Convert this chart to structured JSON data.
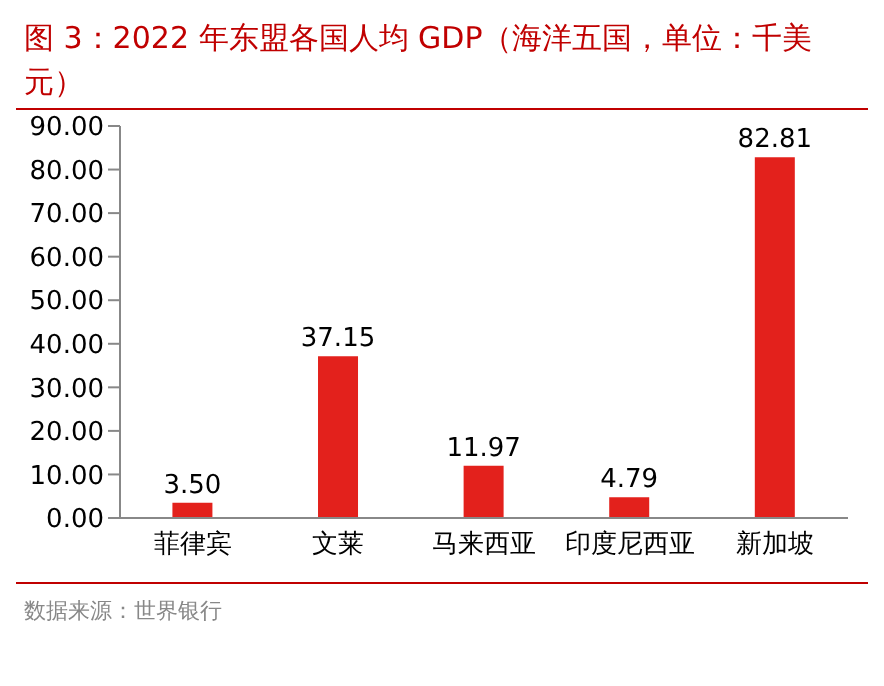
{
  "chart_data": {
    "type": "bar",
    "title": "图 3：2022 年东盟各国人均 GDP（海洋五国，单位：千美元）",
    "categories": [
      "菲律宾",
      "文莱",
      "马来西亚",
      "印度尼西亚",
      "新加坡"
    ],
    "values": [
      3.5,
      37.15,
      11.97,
      4.79,
      82.81
    ],
    "value_labels": [
      "3.50",
      "37.15",
      "11.97",
      "4.79",
      "82.81"
    ],
    "color": "#e3211c",
    "ylim": [
      0,
      90
    ],
    "yticks": [
      {
        "value": 0,
        "label": "0.00"
      },
      {
        "value": 10,
        "label": "10.00"
      },
      {
        "value": 20,
        "label": "20.00"
      },
      {
        "value": 30,
        "label": "30.00"
      },
      {
        "value": 40,
        "label": "40.00"
      },
      {
        "value": 50,
        "label": "50.00"
      },
      {
        "value": 60,
        "label": "60.00"
      },
      {
        "value": 70,
        "label": "70.00"
      },
      {
        "value": 80,
        "label": "80.00"
      },
      {
        "value": 90,
        "label": "90.00"
      }
    ],
    "grid": false,
    "legend": false,
    "annotations": [
      "数据来源：世界银行"
    ]
  }
}
